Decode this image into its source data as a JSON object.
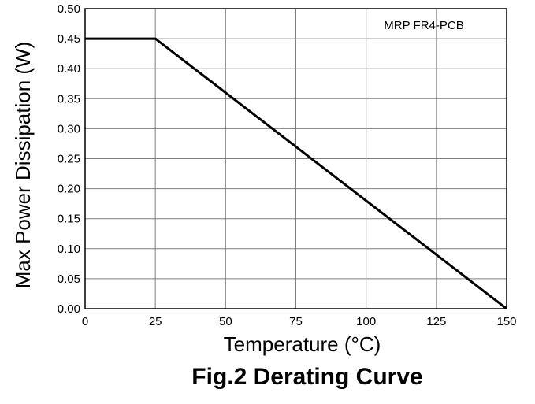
{
  "chart_data": {
    "type": "line",
    "title": "",
    "caption": "Fig.2  Derating Curve",
    "xlabel": "Temperature (°C)",
    "ylabel": "Max Power Dissipation (W)",
    "xlim": [
      0,
      150
    ],
    "ylim": [
      0,
      0.5
    ],
    "x_ticks": [
      "0",
      "25",
      "50",
      "75",
      "100",
      "125",
      "150"
    ],
    "y_ticks": [
      "0.00",
      "0.05",
      "0.10",
      "0.15",
      "0.20",
      "0.25",
      "0.30",
      "0.35",
      "0.40",
      "0.45",
      "0.50"
    ],
    "grid": true,
    "annotation": "MRP FR4-PCB",
    "line_color": "#000000",
    "series": [
      {
        "x": [
          0,
          25,
          150
        ],
        "y": [
          0.45,
          0.45,
          0
        ]
      }
    ]
  }
}
